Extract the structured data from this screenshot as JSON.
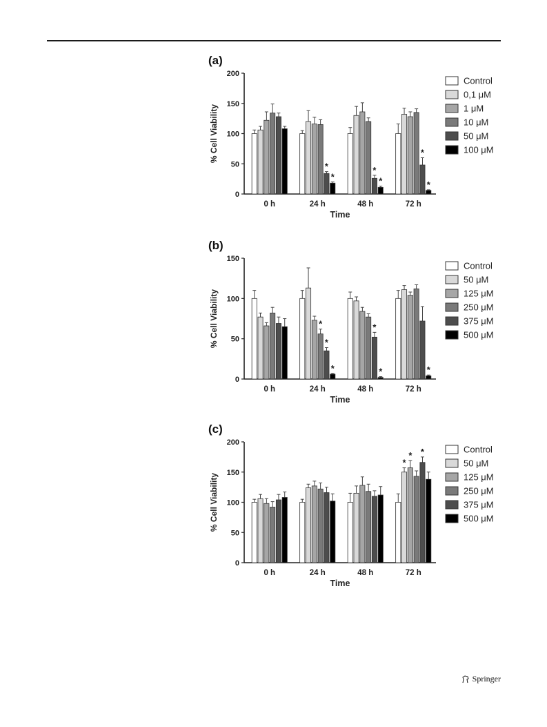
{
  "footer": {
    "publisher": "Springer"
  },
  "palette": [
    "#ffffff",
    "#d9d9d9",
    "#a6a6a6",
    "#7a7a7a",
    "#4d4d4d",
    "#000000"
  ],
  "chart_data": [
    {
      "panel": "(a)",
      "type": "bar",
      "categories": [
        "0 h",
        "24 h",
        "48 h",
        "72 h"
      ],
      "xlabel": "Time",
      "ylabel": "% Cell Viability",
      "ylim": [
        0,
        200
      ],
      "yticks": [
        0,
        50,
        100,
        150,
        200
      ],
      "legend_position": "right",
      "series": [
        {
          "name": "Control",
          "values": [
            100,
            100,
            100,
            100
          ],
          "errors": [
            6,
            5,
            10,
            16
          ],
          "sig": [
            false,
            false,
            false,
            false
          ]
        },
        {
          "name": "0,1 μM",
          "values": [
            106,
            120,
            130,
            132
          ],
          "errors": [
            6,
            18,
            15,
            10
          ],
          "sig": [
            false,
            false,
            false,
            false
          ]
        },
        {
          "name": "1 μM",
          "values": [
            122,
            116,
            136,
            128
          ],
          "errors": [
            14,
            11,
            15,
            8
          ],
          "sig": [
            false,
            false,
            false,
            false
          ]
        },
        {
          "name": "10 μM",
          "values": [
            134,
            115,
            120,
            135
          ],
          "errors": [
            15,
            8,
            6,
            6
          ],
          "sig": [
            false,
            false,
            false,
            false
          ]
        },
        {
          "name": "50 μM",
          "values": [
            128,
            34,
            26,
            48
          ],
          "errors": [
            6,
            3,
            5,
            12
          ],
          "sig": [
            false,
            true,
            true,
            true
          ]
        },
        {
          "name": "100 μM",
          "values": [
            108,
            18,
            11,
            6
          ],
          "errors": [
            4,
            2,
            2,
            1
          ],
          "sig": [
            false,
            true,
            true,
            true
          ]
        }
      ]
    },
    {
      "panel": "(b)",
      "type": "bar",
      "categories": [
        "0 h",
        "24 h",
        "48 h",
        "72 h"
      ],
      "xlabel": "Time",
      "ylabel": "% Cell Viability",
      "ylim": [
        0,
        150
      ],
      "yticks": [
        0,
        50,
        100,
        150
      ],
      "legend_position": "right",
      "series": [
        {
          "name": "Control",
          "values": [
            100,
            100,
            100,
            100
          ],
          "errors": [
            10,
            10,
            8,
            10
          ],
          "sig": [
            false,
            false,
            false,
            false
          ]
        },
        {
          "name": "50 μM",
          "values": [
            77,
            113,
            97,
            111
          ],
          "errors": [
            5,
            25,
            5,
            5
          ],
          "sig": [
            false,
            false,
            false,
            false
          ]
        },
        {
          "name": "125 μM",
          "values": [
            66,
            73,
            84,
            104
          ],
          "errors": [
            4,
            5,
            5,
            4
          ],
          "sig": [
            false,
            false,
            false,
            false
          ]
        },
        {
          "name": "250 μM",
          "values": [
            82,
            56,
            77,
            112
          ],
          "errors": [
            7,
            6,
            4,
            5
          ],
          "sig": [
            false,
            true,
            false,
            false
          ]
        },
        {
          "name": "375 μM",
          "values": [
            69,
            35,
            52,
            72
          ],
          "errors": [
            8,
            4,
            6,
            18
          ],
          "sig": [
            false,
            true,
            true,
            false
          ]
        },
        {
          "name": "500 μM",
          "values": [
            65,
            6,
            2,
            4
          ],
          "errors": [
            10,
            1,
            1,
            1
          ],
          "sig": [
            false,
            true,
            true,
            true
          ]
        }
      ]
    },
    {
      "panel": "(c)",
      "type": "bar",
      "categories": [
        "0 h",
        "24 h",
        "48 h",
        "72 h"
      ],
      "xlabel": "Time",
      "ylabel": "% Cell Viability",
      "ylim": [
        0,
        200
      ],
      "yticks": [
        0,
        50,
        100,
        150,
        200
      ],
      "legend_position": "right",
      "series": [
        {
          "name": "Control",
          "values": [
            100,
            100,
            100,
            100
          ],
          "errors": [
            5,
            5,
            15,
            14
          ],
          "sig": [
            false,
            false,
            false,
            false
          ]
        },
        {
          "name": "50 μM",
          "values": [
            106,
            124,
            115,
            150
          ],
          "errors": [
            7,
            6,
            12,
            7
          ],
          "sig": [
            false,
            false,
            false,
            true
          ]
        },
        {
          "name": "125 μM",
          "values": [
            98,
            127,
            128,
            157
          ],
          "errors": [
            8,
            8,
            14,
            12
          ],
          "sig": [
            false,
            false,
            false,
            true
          ]
        },
        {
          "name": "250 μM",
          "values": [
            92,
            122,
            118,
            143
          ],
          "errors": [
            9,
            10,
            12,
            9
          ],
          "sig": [
            false,
            false,
            false,
            false
          ]
        },
        {
          "name": "375 μM",
          "values": [
            104,
            116,
            110,
            166
          ],
          "errors": [
            9,
            9,
            9,
            9
          ],
          "sig": [
            false,
            false,
            false,
            true
          ]
        },
        {
          "name": "500 μM",
          "values": [
            108,
            102,
            112,
            138
          ],
          "errors": [
            9,
            12,
            14,
            12
          ],
          "sig": [
            false,
            false,
            false,
            false
          ]
        }
      ]
    }
  ]
}
